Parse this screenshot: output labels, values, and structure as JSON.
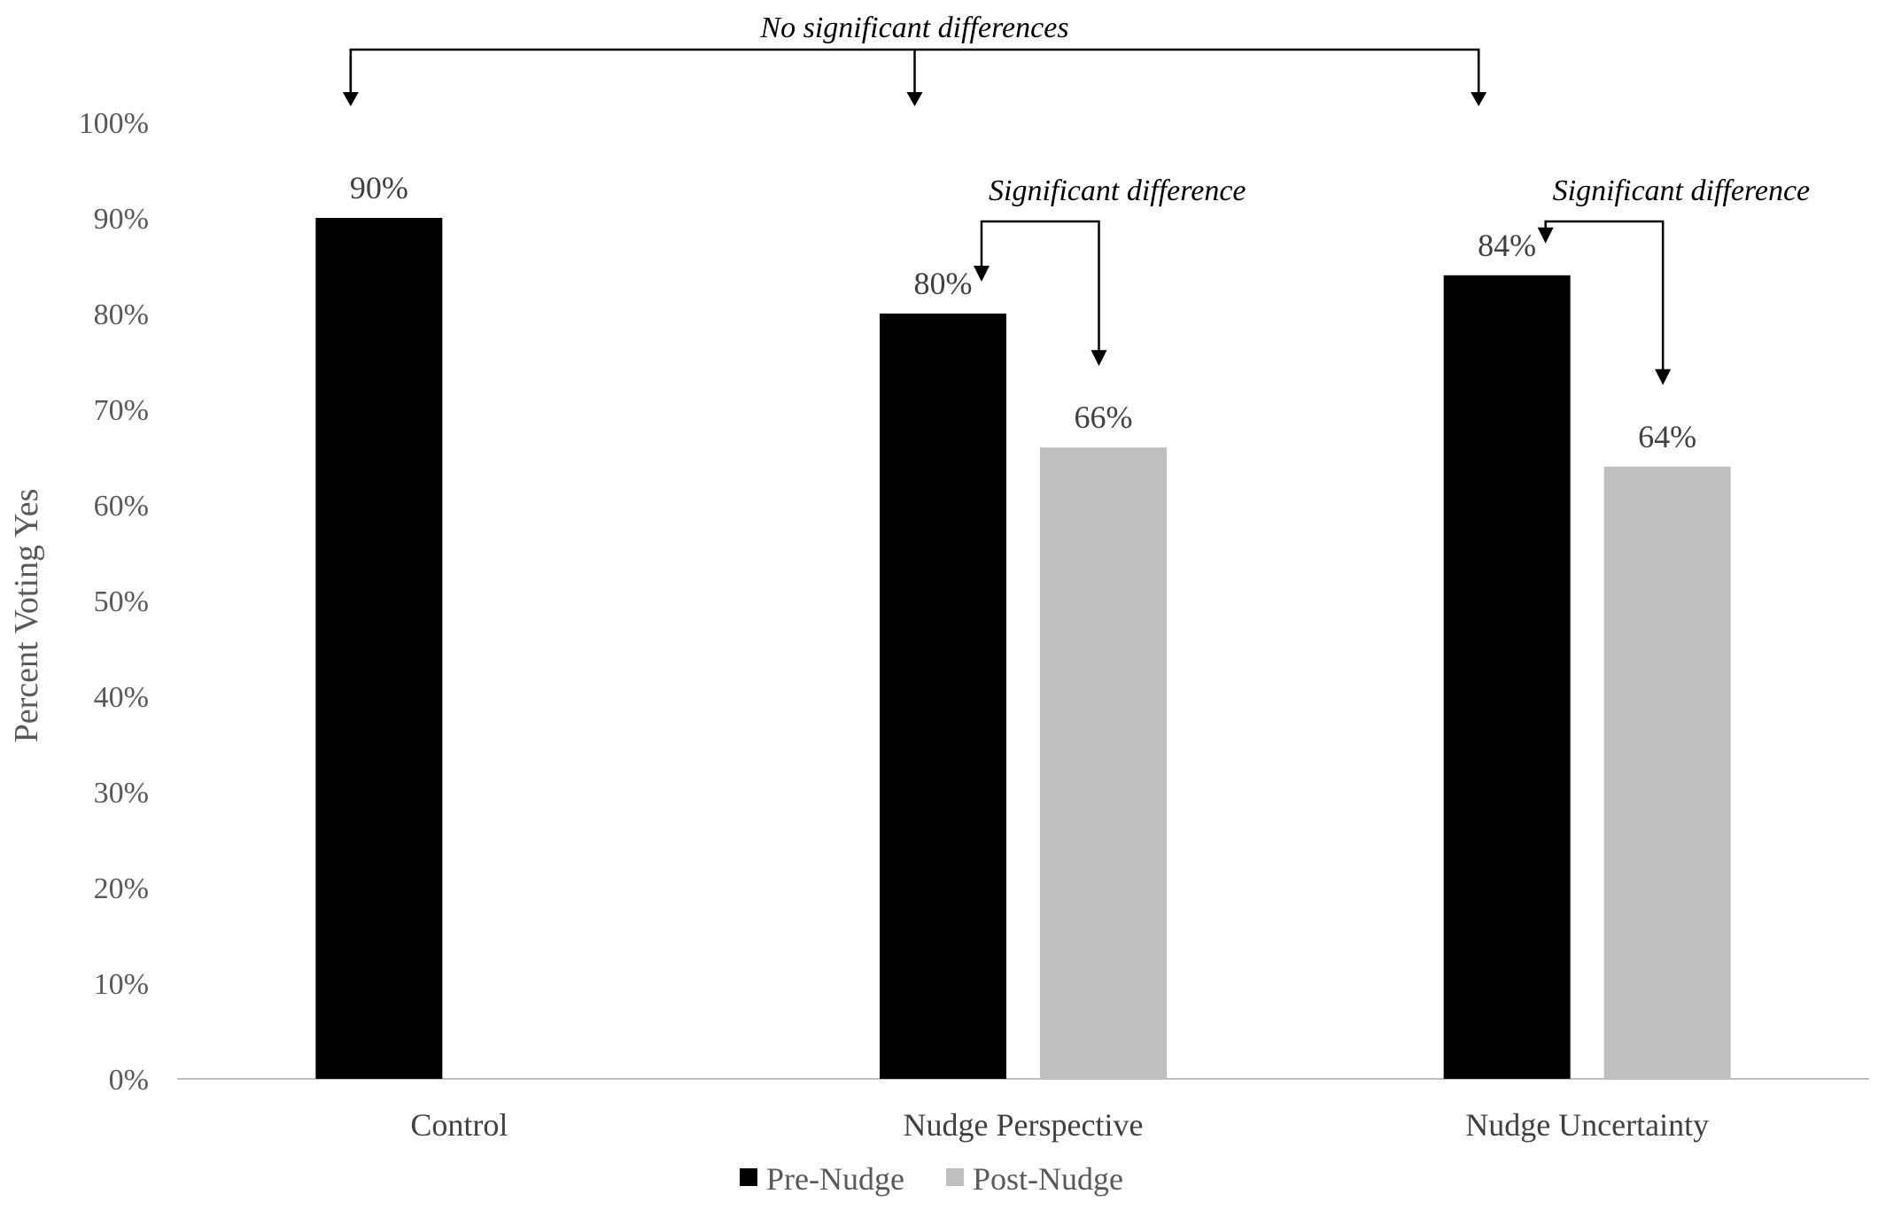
{
  "chart_data": {
    "type": "bar",
    "categories": [
      "Control",
      "Nudge Perspective",
      "Nudge Uncertainty"
    ],
    "series": [
      {
        "name": "Pre-Nudge",
        "color": "#000000",
        "values": [
          90,
          80,
          84
        ],
        "labels": [
          "90%",
          "80%",
          "84%"
        ]
      },
      {
        "name": "Post-Nudge",
        "color": "#bfbfbf",
        "values": [
          null,
          66,
          64
        ],
        "labels": [
          "",
          "66%",
          "64%"
        ]
      }
    ],
    "ylabel": "Percent Voting Yes",
    "ylim": [
      0,
      100
    ],
    "yticks": [
      "0%",
      "10%",
      "20%",
      "30%",
      "40%",
      "50%",
      "60%",
      "70%",
      "80%",
      "90%",
      "100%"
    ],
    "grid": false,
    "legend_position": "bottom",
    "annotations": [
      {
        "text": "No significant differences",
        "targets": [
          "Control",
          "Nudge Perspective",
          "Nudge Uncertainty"
        ]
      },
      {
        "text": "Significant difference",
        "category": "Nudge Perspective"
      },
      {
        "text": "Significant difference",
        "category": "Nudge Uncertainty"
      }
    ]
  }
}
